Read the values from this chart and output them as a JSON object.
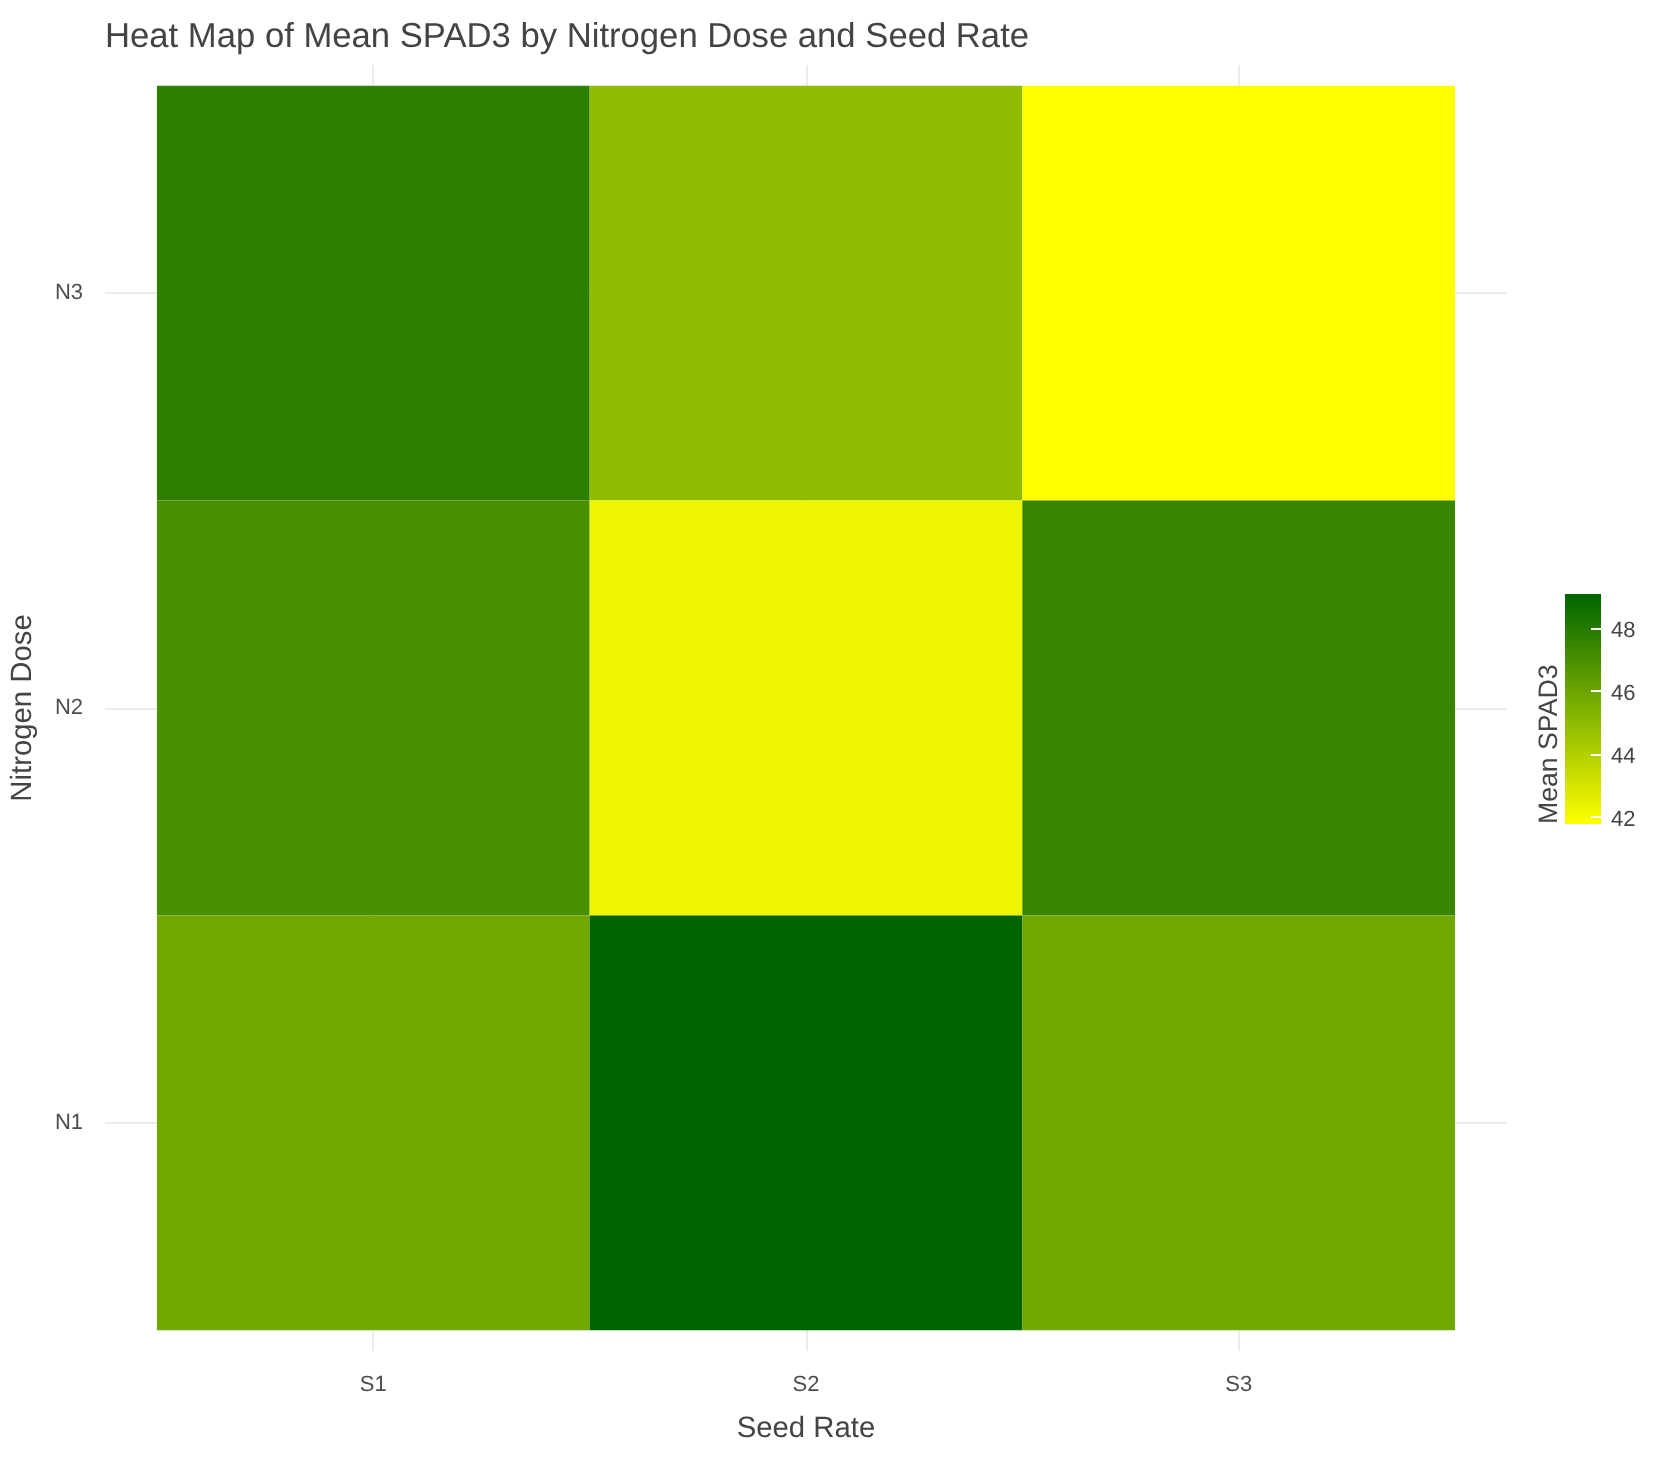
{
  "chart_data": {
    "type": "heatmap",
    "title": "Heat Map of Mean SPAD3 by Nitrogen Dose and Seed Rate",
    "xlabel": "Seed Rate",
    "ylabel": "Nitrogen Dose",
    "clabel": "Mean SPAD3",
    "categories": [
      "S1",
      "S2",
      "S3"
    ],
    "y_categories": [
      "N3",
      "N2",
      "N1"
    ],
    "cells": [
      [
        47.8,
        45.0,
        41.8
      ],
      [
        47.0,
        42.3,
        47.5
      ],
      [
        45.9,
        49.1,
        45.9
      ]
    ],
    "colors": [
      "#ffff00",
      "#006400"
    ],
    "clim": [
      41.8,
      49.1
    ],
    "cticks": [
      42,
      44,
      46,
      48
    ],
    "grid": true
  }
}
